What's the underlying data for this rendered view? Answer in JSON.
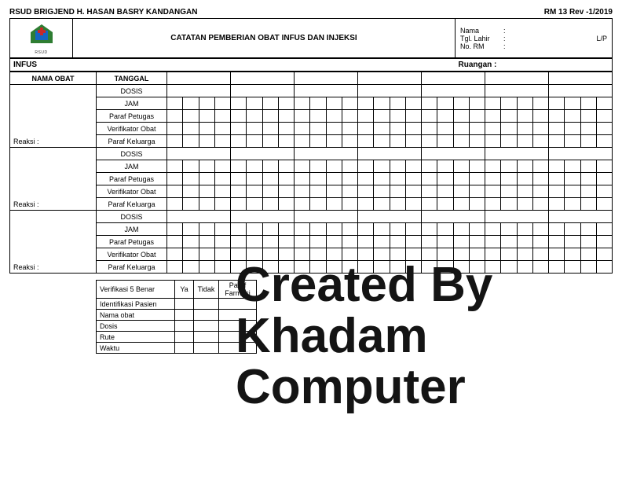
{
  "header": {
    "hospital": "RSUD BRIGJEND H. HASAN BASRY KANDANGAN",
    "form_code": "RM 13 Rev -1/2019",
    "title": "CATATAN PEMBERIAN OBAT INFUS DAN INJEKSI",
    "logo_caption": "RSUD"
  },
  "patient": {
    "name_label": "Nama",
    "dob_label": "Tgl. Lahir",
    "rm_label": "No. RM",
    "colon": ":",
    "lp": "L/P"
  },
  "section": {
    "left": "INFUS",
    "room_label": "Ruangan :"
  },
  "grid": {
    "col_obat": "NAMA OBAT",
    "col_tgl": "TANGGAL",
    "row_labels": [
      "DOSIS",
      "JAM",
      "Paraf Petugas",
      "Verifikator Obat",
      "Paraf Keluarga"
    ],
    "reaksi": "Reaksi :",
    "date_cols": 7,
    "sub_cols_per_date": 4,
    "blocks": 3
  },
  "verif": {
    "title": "Verifikasi 5 Benar",
    "col_ya": "Ya",
    "col_tidak": "Tidak",
    "col_paraf": "Paraf Farmasi",
    "rows": [
      "Identifikasi Pasien",
      "Nama obat",
      "Dosis",
      "Rute",
      "Waktu"
    ]
  },
  "watermark": {
    "line1": "Created By",
    "line2": "Khadam",
    "line3": "Computer"
  },
  "style": {
    "border_color": "#000000",
    "background": "#ffffff",
    "logo_colors": {
      "a": "#2e7d32",
      "b": "#1565c0",
      "c": "#c62828"
    }
  }
}
